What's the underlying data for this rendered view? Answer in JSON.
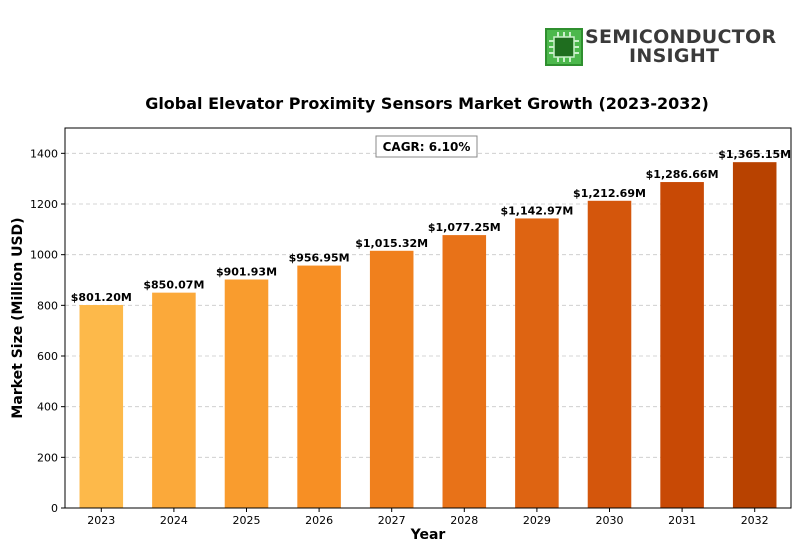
{
  "brand": {
    "name_line1": "SEMICONDUCTOR",
    "name_line2": "INSIGHT"
  },
  "chart_data": {
    "type": "bar",
    "title": "Global Elevator Proximity Sensors Market Growth (2023-2032)",
    "xlabel": "Year",
    "ylabel": "Market Size (Million USD)",
    "ylim": [
      0,
      1500
    ],
    "yticks": [
      0,
      200,
      400,
      600,
      800,
      1000,
      1200,
      1400
    ],
    "grid": "horizontal dashed",
    "annotation": "CAGR: 6.10%",
    "categories": [
      "2023",
      "2024",
      "2025",
      "2026",
      "2027",
      "2028",
      "2029",
      "2030",
      "2031",
      "2032"
    ],
    "values": [
      801.2,
      850.07,
      901.93,
      956.95,
      1015.32,
      1077.25,
      1142.97,
      1212.69,
      1286.66,
      1365.15
    ],
    "labels": [
      "$801.20M",
      "$850.07M",
      "$901.93M",
      "$956.95M",
      "$1,015.32M",
      "$1,077.25M",
      "$1,142.97M",
      "$1,212.69M",
      "$1,286.66M",
      "$1,365.15M"
    ],
    "colors": [
      "#FDB94A",
      "#FBA93A",
      "#F99C2E",
      "#F78F24",
      "#F0801D",
      "#E87218",
      "#DE6412",
      "#D4560C",
      "#C84905",
      "#B84200"
    ]
  }
}
